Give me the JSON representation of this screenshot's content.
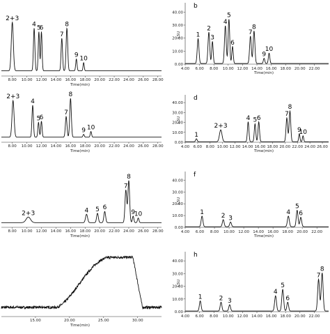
{
  "chart_data": [
    {
      "type": "line",
      "panel": "a",
      "xlabel": "Time(min)",
      "x_ticks": [
        "8.00",
        "10.00",
        "12.00",
        "14.00",
        "16.00",
        "18.00",
        "20.00",
        "22.00",
        "24.00",
        "26.00",
        "28.00"
      ],
      "xlim": [
        6.5,
        28.5
      ],
      "ylim": [
        0,
        100
      ],
      "y_ticks": [],
      "baseline": 4,
      "peaks": [
        {
          "label": "2+3",
          "x": 8.0,
          "height": 82,
          "width": 0.14
        },
        {
          "label": "4",
          "x": 11.0,
          "height": 72,
          "width": 0.1
        },
        {
          "label": "5",
          "x": 11.65,
          "height": 66,
          "width": 0.09
        },
        {
          "label": "6",
          "x": 12.0,
          "height": 66,
          "width": 0.09
        },
        {
          "label": "7",
          "x": 14.8,
          "height": 55,
          "width": 0.1
        },
        {
          "label": "8",
          "x": 15.5,
          "height": 72,
          "width": 0.11
        },
        {
          "label": "9",
          "x": 16.8,
          "height": 20,
          "width": 0.09
        },
        {
          "label": "10",
          "x": 17.8,
          "height": 14,
          "width": 0.08
        }
      ]
    },
    {
      "type": "line",
      "panel": "b",
      "panel_label": "b",
      "ylabel": "LSU",
      "xlabel": "Time(min)",
      "x_ticks": [
        "4.00",
        "6.00",
        "8.00",
        "10.00",
        "12.00",
        "14.00",
        "16.00",
        "18.00",
        "20.00",
        "22.00"
      ],
      "y_ticks": [
        "0.00",
        "10.00",
        "20.00",
        "30.00",
        "40.00"
      ],
      "xlim": [
        4,
        24
      ],
      "ylim": [
        0,
        45
      ],
      "baseline": 0.5,
      "peaks": [
        {
          "label": "1",
          "x": 5.8,
          "height": 19,
          "width": 0.12
        },
        {
          "label": "2",
          "x": 7.3,
          "height": 24,
          "width": 0.12
        },
        {
          "label": "3",
          "x": 7.8,
          "height": 17,
          "width": 0.1
        },
        {
          "label": "4",
          "x": 9.6,
          "height": 29,
          "width": 0.12
        },
        {
          "label": "5",
          "x": 10.1,
          "height": 34,
          "width": 0.11
        },
        {
          "label": "6",
          "x": 10.6,
          "height": 13,
          "width": 0.1
        },
        {
          "label": "7",
          "x": 13.1,
          "height": 21,
          "width": 0.12
        },
        {
          "label": "8",
          "x": 13.6,
          "height": 25,
          "width": 0.12
        },
        {
          "label": "9",
          "x": 15.0,
          "height": 4,
          "width": 0.1
        },
        {
          "label": "10",
          "x": 15.7,
          "height": 8,
          "width": 0.1
        }
      ]
    },
    {
      "type": "line",
      "panel": "c",
      "xlabel": "Time(min)",
      "x_ticks": [
        "8.00",
        "10.00",
        "12.00",
        "14.00",
        "16.00",
        "18.00",
        "20.00",
        "22.00",
        "24.00",
        "26.00",
        "28.00"
      ],
      "xlim": [
        6.5,
        28.5
      ],
      "ylim": [
        0,
        100
      ],
      "baseline": 4,
      "peaks": [
        {
          "label": "2+3",
          "x": 8.1,
          "height": 64,
          "width": 0.14
        },
        {
          "label": "4",
          "x": 10.8,
          "height": 56,
          "width": 0.1
        },
        {
          "label": "5",
          "x": 11.6,
          "height": 26,
          "width": 0.09
        },
        {
          "label": "6",
          "x": 12.0,
          "height": 28,
          "width": 0.09
        },
        {
          "label": "7",
          "x": 15.4,
          "height": 36,
          "width": 0.11
        },
        {
          "label": "8",
          "x": 16.0,
          "height": 68,
          "width": 0.11
        },
        {
          "label": "9",
          "x": 17.8,
          "height": 5,
          "width": 0.09
        },
        {
          "label": "10",
          "x": 18.8,
          "height": 10,
          "width": 0.09
        }
      ]
    },
    {
      "type": "line",
      "panel": "d",
      "panel_label": "d",
      "ylabel": "LSU",
      "xlabel": "Time(min)",
      "x_ticks": [
        "4.00",
        "6.00",
        "8.00",
        "10.00",
        "12.00",
        "14.00",
        "16.00",
        "18.00",
        "20.00",
        "22.00",
        "24.00",
        "26.00"
      ],
      "y_ticks": [
        "0.00",
        "10.00",
        "20.00",
        "30.00",
        "40.00"
      ],
      "xlim": [
        4,
        27
      ],
      "ylim": [
        0,
        45
      ],
      "baseline": 0.5,
      "peaks": [
        {
          "label": "1",
          "x": 5.8,
          "height": 3,
          "width": 0.12
        },
        {
          "label": "2+3",
          "x": 9.7,
          "height": 12,
          "width": 0.2
        },
        {
          "label": "4",
          "x": 14.1,
          "height": 20,
          "width": 0.12
        },
        {
          "label": "5",
          "x": 15.2,
          "height": 18,
          "width": 0.12
        },
        {
          "label": "6",
          "x": 15.8,
          "height": 20,
          "width": 0.12
        },
        {
          "label": "7",
          "x": 20.3,
          "height": 24,
          "width": 0.13
        },
        {
          "label": "8",
          "x": 20.8,
          "height": 31,
          "width": 0.13
        },
        {
          "label": "9",
          "x": 22.3,
          "height": 8,
          "width": 0.1
        },
        {
          "label": "10",
          "x": 22.9,
          "height": 6,
          "width": 0.1
        }
      ]
    },
    {
      "type": "line",
      "panel": "e",
      "xlabel": "Time(min)",
      "x_ticks": [
        "8.00",
        "10.00",
        "12.00",
        "14.00",
        "16.00",
        "18.00",
        "20.00",
        "22.00",
        "24.00",
        "26.00",
        "28.00"
      ],
      "xlim": [
        6.5,
        28.5
      ],
      "ylim": [
        0,
        100
      ],
      "baseline": 4,
      "peaks": [
        {
          "label": "2+3",
          "x": 10.2,
          "height": 12,
          "width": 0.3
        },
        {
          "label": "4",
          "x": 18.2,
          "height": 18,
          "width": 0.14
        },
        {
          "label": "5",
          "x": 19.7,
          "height": 20,
          "width": 0.12
        },
        {
          "label": "6",
          "x": 20.7,
          "height": 24,
          "width": 0.12
        },
        {
          "label": "7",
          "x": 23.6,
          "height": 70,
          "width": 0.12
        },
        {
          "label": "8",
          "x": 24.0,
          "height": 90,
          "width": 0.12
        },
        {
          "label": "9",
          "x": 24.6,
          "height": 14,
          "width": 0.1
        },
        {
          "label": "10",
          "x": 25.3,
          "height": 10,
          "width": 0.1
        }
      ]
    },
    {
      "type": "line",
      "panel": "f",
      "panel_label": "f",
      "ylabel": "LSU",
      "xlabel": "Time(min)",
      "x_ticks": [
        "4.00",
        "6.00",
        "8.00",
        "10.00",
        "12.00",
        "14.00",
        "16.00",
        "18.00",
        "20.00",
        "22.00"
      ],
      "y_ticks": [
        "0.00",
        "10.00",
        "20.00",
        "30.00",
        "40.00"
      ],
      "xlim": [
        4,
        23.6
      ],
      "ylim": [
        0,
        45
      ],
      "baseline": 0.5,
      "peaks": [
        {
          "label": "1",
          "x": 6.3,
          "height": 9,
          "width": 0.12
        },
        {
          "label": "2",
          "x": 9.2,
          "height": 6,
          "width": 0.12
        },
        {
          "label": "3",
          "x": 10.2,
          "height": 4,
          "width": 0.12
        },
        {
          "label": "4",
          "x": 18.1,
          "height": 9,
          "width": 0.13
        },
        {
          "label": "5",
          "x": 19.3,
          "height": 14,
          "width": 0.12
        },
        {
          "label": "6",
          "x": 19.8,
          "height": 8,
          "width": 0.12
        }
      ]
    },
    {
      "type": "line",
      "panel": "g",
      "xlabel": "Time(min)",
      "x_ticks": [
        "15.00",
        "20.00",
        "25.00",
        "30.00"
      ],
      "xlim": [
        10,
        33.5
      ],
      "ylim": [
        0,
        100
      ],
      "note": "broad hump",
      "hump": {
        "rise_start": 18,
        "plateau_start": 26,
        "plateau_end": 29.3,
        "fall_end": 30.7,
        "height": 88,
        "baseline": 10
      }
    },
    {
      "type": "line",
      "panel": "h",
      "panel_label": "h",
      "ylabel": "LSU",
      "xlabel": "Time(min)",
      "x_ticks": [
        "4.00",
        "6.00",
        "8.00",
        "10.00",
        "12.00",
        "14.00",
        "16.00",
        "18.00",
        "20.00",
        "22.00"
      ],
      "y_ticks": [
        "0.00",
        "10.00",
        "20.00",
        "30.00",
        "40.00"
      ],
      "xlim": [
        4,
        24
      ],
      "ylim": [
        0,
        45
      ],
      "baseline": 0.5,
      "peaks": [
        {
          "label": "1",
          "x": 6.1,
          "height": 8,
          "width": 0.12
        },
        {
          "label": "2",
          "x": 9.0,
          "height": 7,
          "width": 0.12
        },
        {
          "label": "3",
          "x": 10.2,
          "height": 5,
          "width": 0.12
        },
        {
          "label": "4",
          "x": 16.6,
          "height": 12,
          "width": 0.13
        },
        {
          "label": "5",
          "x": 17.6,
          "height": 17,
          "width": 0.13
        },
        {
          "label": "6",
          "x": 18.3,
          "height": 7,
          "width": 0.12
        },
        {
          "label": "7",
          "x": 22.6,
          "height": 25,
          "width": 0.13
        },
        {
          "label": "8",
          "x": 23.1,
          "height": 30,
          "width": 0.13
        }
      ]
    }
  ]
}
